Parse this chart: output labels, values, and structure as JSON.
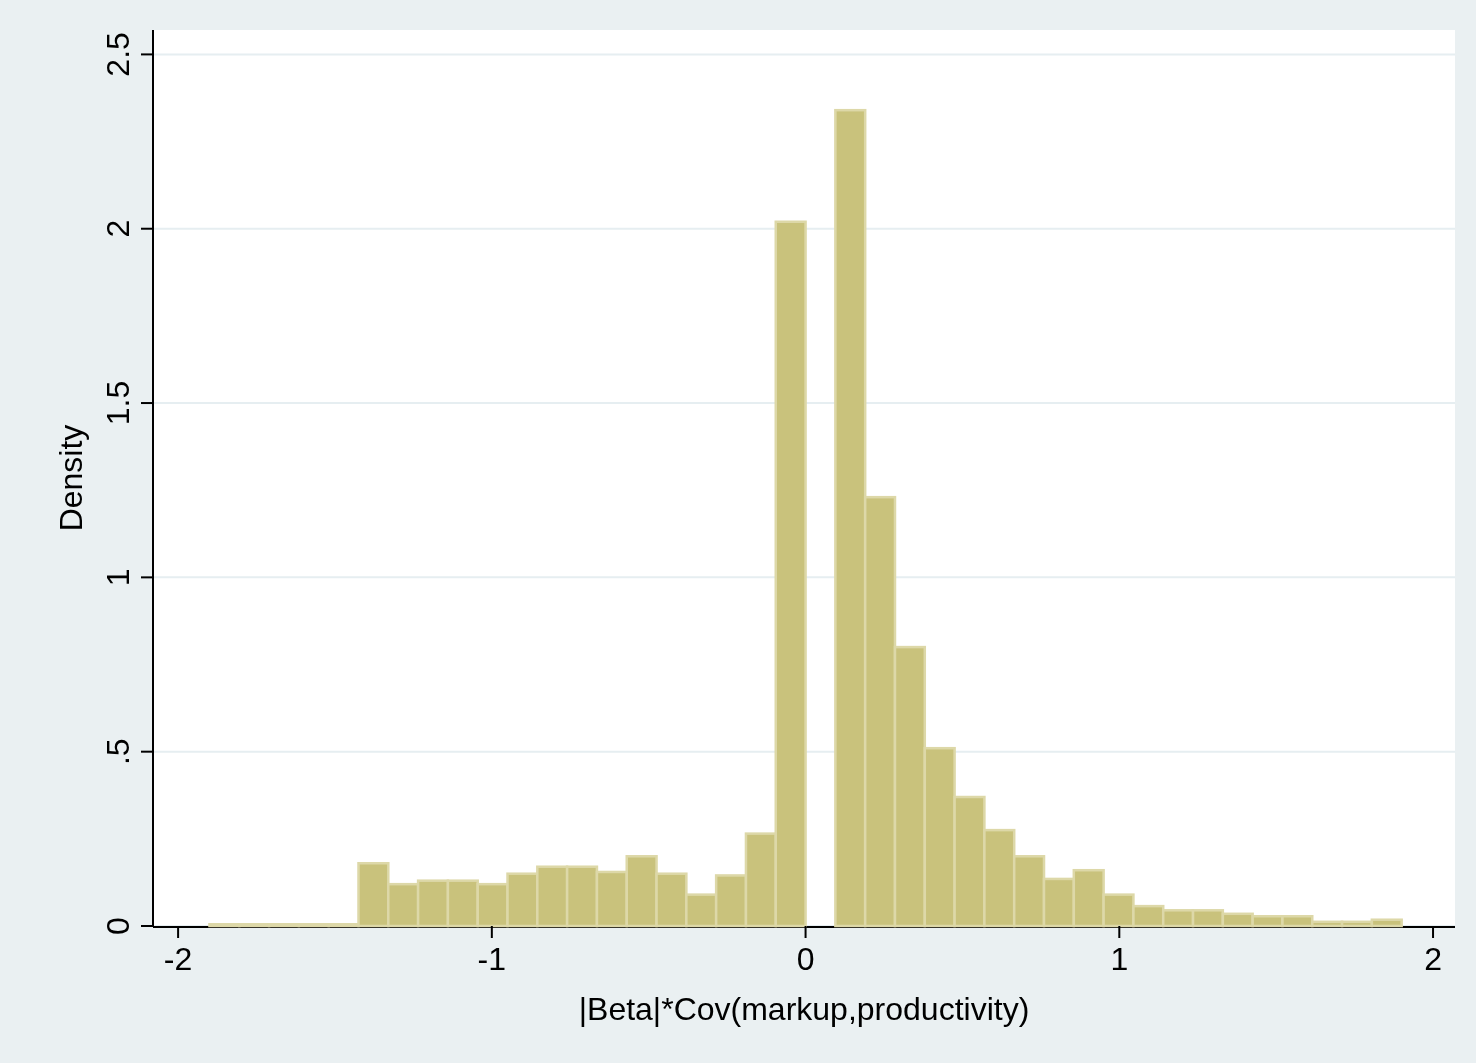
{
  "chart_data": {
    "type": "histogram",
    "xlabel": "|Beta|*Cov(markup,productivity)",
    "ylabel": "Density",
    "bins": [
      -1.9,
      -1.805,
      -1.71,
      -1.615,
      -1.52,
      -1.425,
      -1.33,
      -1.235,
      -1.14,
      -1.045,
      -0.95,
      -0.855,
      -0.76,
      -0.665,
      -0.57,
      -0.475,
      -0.38,
      -0.285,
      -0.19,
      -0.095,
      0,
      0.095,
      0.19,
      0.285,
      0.38,
      0.475,
      0.57,
      0.665,
      0.76,
      0.855,
      0.95,
      1.045,
      1.14,
      1.235,
      1.33,
      1.425,
      1.52,
      1.615,
      1.71,
      1.805,
      1.9
    ],
    "values": [
      0.005,
      0.005,
      0.005,
      0.005,
      0.005,
      0.18,
      0.12,
      0.13,
      0.13,
      0.12,
      0.15,
      0.17,
      0.17,
      0.155,
      0.2,
      0.15,
      0.09,
      0.145,
      0.265,
      2.02,
      0,
      2.34,
      1.23,
      0.8,
      0.51,
      0.37,
      0.275,
      0.2,
      0.135,
      0.16,
      0.09,
      0.057,
      0.045,
      0.045,
      0.035,
      0.028,
      0.028,
      0.012,
      0.012,
      0.018
    ],
    "color": "#c9c27c",
    "xlim": [
      -2.08,
      2.07
    ],
    "xticks": [
      -2,
      -1,
      0,
      1,
      2
    ],
    "ylim": [
      0,
      2.57
    ],
    "yticks": [
      0,
      {
        "value": 0.5,
        "label": ".5"
      },
      1,
      {
        "value": 1.5,
        "label": "1.5"
      },
      2,
      2.5
    ],
    "grid": "y"
  }
}
